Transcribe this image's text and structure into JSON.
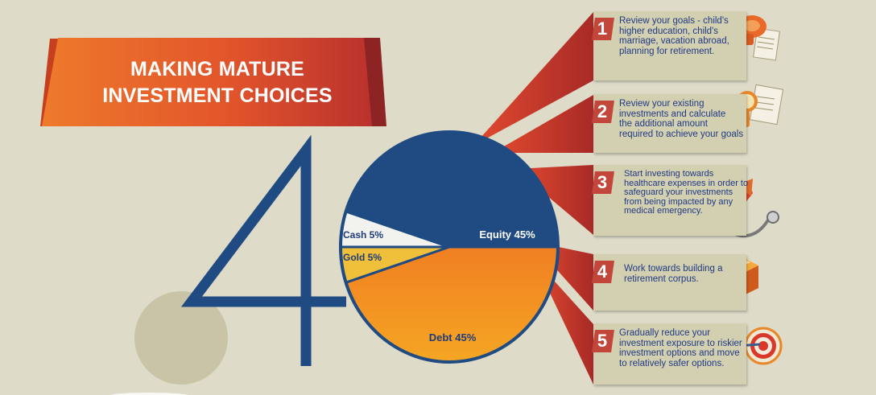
{
  "title": {
    "line1": "MAKING MATURE",
    "line2": "INVESTMENT CHOICES"
  },
  "big_number": "40",
  "allocation": [
    {
      "name": "Equity",
      "label": "Equity 45%",
      "percent": 45,
      "color": "#1f4a82"
    },
    {
      "name": "Debt",
      "label": "Debt 45%",
      "percent": 45,
      "color": "#f08a22"
    },
    {
      "name": "Gold",
      "label": "Gold 5%",
      "percent": 5,
      "color": "#f0c03a"
    },
    {
      "name": "Cash",
      "label": "Cash 5%",
      "percent": 5,
      "color": "#f2f2ef"
    }
  ],
  "steps": [
    {
      "number": "1",
      "lines": [
        "Review your goals - child's",
        "higher education, child's",
        "marriage, vacation abroad,",
        "planning for retirement."
      ],
      "icon": "megaphone-document-icon"
    },
    {
      "number": "2",
      "lines": [
        "Review your existing",
        "investments and calculate",
        "the additional amount",
        "required to achieve your goals"
      ],
      "icon": "magnifier-documents-icon"
    },
    {
      "number": "3",
      "lines": [
        "Start investing towards",
        "healthcare expenses in order to",
        "safeguard your investments",
        "from being impacted by any",
        "medical emergency."
      ],
      "icon": "stethoscope-icon"
    },
    {
      "number": "4",
      "lines": [
        "Work towards building a",
        "retirement corpus."
      ],
      "icon": "gift-box-icon"
    },
    {
      "number": "5",
      "lines": [
        "Gradually reduce your",
        "investment exposure to riskier",
        "investment options and move",
        "to relatively safer options."
      ],
      "icon": "target-dart-icon"
    }
  ],
  "colors": {
    "background": "#dedbc9",
    "banner_orange": "#ee7a2b",
    "banner_red": "#b8302d",
    "navy": "#1f4a82",
    "card": "#d3cfb1",
    "ray_red": "#c8362f",
    "text_blue": "#203a82"
  }
}
